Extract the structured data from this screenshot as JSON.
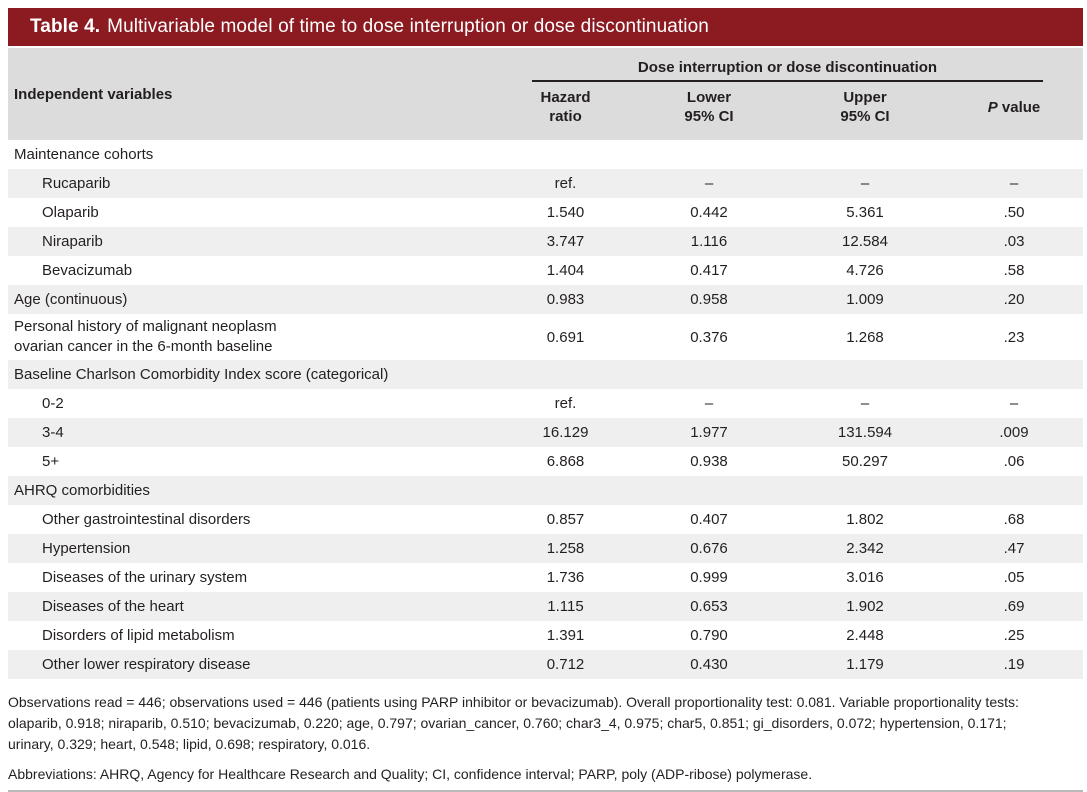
{
  "title": {
    "bold": "Table 4.",
    "rest": "Multivariable model of time to dose interruption or dose discontinuation"
  },
  "header": {
    "independent_variables": "Independent variables",
    "spanner": "Dose interruption or dose discontinuation",
    "columns": [
      {
        "line1": "Hazard",
        "line2": "ratio"
      },
      {
        "line1": "Lower",
        "line2": "95% CI"
      },
      {
        "line1": "Upper",
        "line2": "95% CI"
      }
    ],
    "p_column": {
      "italic": "P",
      "rest": " value"
    }
  },
  "rows": [
    {
      "label": "Maintenance cohorts",
      "indent": false,
      "section": true,
      "hazard": "",
      "lower": "",
      "upper": "",
      "p": ""
    },
    {
      "label": "Rucaparib",
      "indent": true,
      "section": false,
      "hazard": "ref.",
      "lower": "–",
      "upper": "–",
      "p": "–"
    },
    {
      "label": "Olaparib",
      "indent": true,
      "section": false,
      "hazard": "1.540",
      "lower": "0.442",
      "upper": "5.361",
      "p": ".50"
    },
    {
      "label": "Niraparib",
      "indent": true,
      "section": false,
      "hazard": "3.747",
      "lower": "1.116",
      "upper": "12.584",
      "p": ".03"
    },
    {
      "label": "Bevacizumab",
      "indent": true,
      "section": false,
      "hazard": "1.404",
      "lower": "0.417",
      "upper": "4.726",
      "p": ".58"
    },
    {
      "label": "Age (continuous)",
      "indent": false,
      "section": false,
      "hazard": "0.983",
      "lower": "0.958",
      "upper": "1.009",
      "p": ".20"
    },
    {
      "label": "Personal history of malignant neoplasm\novarian cancer in the 6-month baseline",
      "indent": false,
      "section": false,
      "hazard": "0.691",
      "lower": "0.376",
      "upper": "1.268",
      "p": ".23"
    },
    {
      "label": "Baseline Charlson Comorbidity Index score (categorical)",
      "indent": false,
      "section": true,
      "hazard": "",
      "lower": "",
      "upper": "",
      "p": ""
    },
    {
      "label": "0-2",
      "indent": true,
      "section": false,
      "hazard": "ref.",
      "lower": "–",
      "upper": "–",
      "p": "–"
    },
    {
      "label": "3-4",
      "indent": true,
      "section": false,
      "hazard": "16.129",
      "lower": "1.977",
      "upper": "131.594",
      "p": ".009"
    },
    {
      "label": "5+",
      "indent": true,
      "section": false,
      "hazard": "6.868",
      "lower": "0.938",
      "upper": "50.297",
      "p": ".06"
    },
    {
      "label": "AHRQ comorbidities",
      "indent": false,
      "section": true,
      "hazard": "",
      "lower": "",
      "upper": "",
      "p": ""
    },
    {
      "label": "Other gastrointestinal disorders",
      "indent": true,
      "section": false,
      "hazard": "0.857",
      "lower": "0.407",
      "upper": "1.802",
      "p": ".68"
    },
    {
      "label": "Hypertension",
      "indent": true,
      "section": false,
      "hazard": "1.258",
      "lower": "0.676",
      "upper": "2.342",
      "p": ".47"
    },
    {
      "label": "Diseases of the urinary system",
      "indent": true,
      "section": false,
      "hazard": "1.736",
      "lower": "0.999",
      "upper": "3.016",
      "p": ".05"
    },
    {
      "label": "Diseases of the heart",
      "indent": true,
      "section": false,
      "hazard": "1.115",
      "lower": "0.653",
      "upper": "1.902",
      "p": ".69"
    },
    {
      "label": "Disorders of lipid metabolism",
      "indent": true,
      "section": false,
      "hazard": "1.391",
      "lower": "0.790",
      "upper": "2.448",
      "p": ".25"
    },
    {
      "label": "Other lower respiratory disease",
      "indent": true,
      "section": false,
      "hazard": "0.712",
      "lower": "0.430",
      "upper": "1.179",
      "p": ".19"
    }
  ],
  "footnotes": {
    "observations": "Observations read = 446; observations used = 446 (patients using PARP inhibitor or bevacizumab). Overall proportionality test: 0.081. Variable proportionality tests: olaparib, 0.918; niraparib, 0.510; bevacizumab, 0.220; age, 0.797; ovarian_cancer, 0.760; char3_4, 0.975; char5, 0.851; gi_disorders, 0.072; hypertension, 0.171; urinary, 0.329; heart, 0.548; lipid, 0.698; respiratory, 0.016.",
    "abbreviations": "Abbreviations: AHRQ, Agency for Healthcare Research and Quality; CI, confidence interval; PARP, poly (ADP-ribose) polymerase."
  },
  "colors": {
    "title_bar": "#8b1b21",
    "header_bg": "#dcdcdd",
    "stripe_bg": "#efeff0",
    "text": "#231f20",
    "rule": "#231f20",
    "bottom_rule": "#b9b9b9"
  }
}
